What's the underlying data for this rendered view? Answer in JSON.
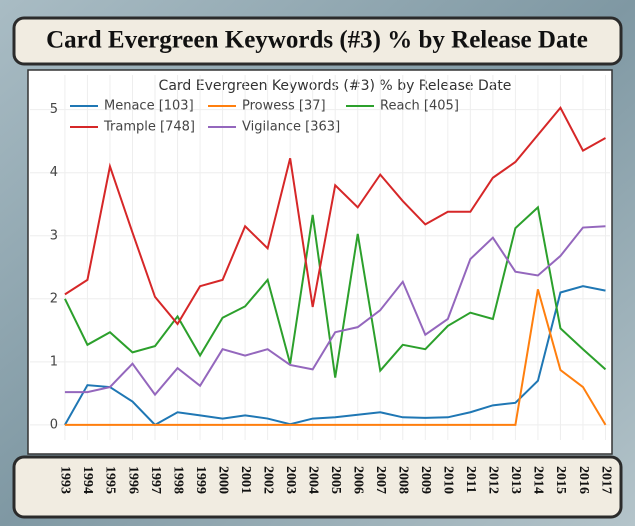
{
  "header_title": "Card Evergreen Keywords (#3) % by Release Date",
  "chart_data": {
    "type": "line",
    "title": "Card Evergreen Keywords (#3) % by Release Date",
    "x": [
      1993,
      1994,
      1995,
      1996,
      1997,
      1998,
      1999,
      2000,
      2001,
      2002,
      2003,
      2004,
      2005,
      2006,
      2007,
      2008,
      2009,
      2010,
      2011,
      2012,
      2013,
      2014,
      2015,
      2016,
      2017
    ],
    "xlim": [
      1991.45,
      2017.2
    ],
    "xticks": [
      1993,
      1994,
      1995,
      1996,
      1997,
      1998,
      1999,
      2000,
      2001,
      2002,
      2003,
      2004,
      2005,
      2006,
      2007,
      2008,
      2009,
      2010,
      2011,
      2012,
      2013,
      2014,
      2015,
      2016,
      2017
    ],
    "ylim": [
      -0.24,
      5.55
    ],
    "yticks": [
      0,
      1,
      2,
      3,
      4,
      5
    ],
    "grid": true,
    "legend": "top-left",
    "series": [
      {
        "name": "Menace [103]",
        "color": "#1f77b4",
        "values": [
          0,
          0.63,
          0.6,
          0.37,
          0,
          0.2,
          0.15,
          0.1,
          0.15,
          0.1,
          0.01,
          0.1,
          0.12,
          0.16,
          0.2,
          0.12,
          0.11,
          0.12,
          0.2,
          0.31,
          0.35,
          0.7,
          2.1,
          2.2,
          2.13
        ]
      },
      {
        "name": "Prowess [37]",
        "color": "#ff7f0e",
        "values": [
          0,
          0,
          0,
          0,
          0,
          0,
          0,
          0,
          0,
          0,
          0,
          0,
          0,
          0,
          0,
          0,
          0,
          0,
          0,
          0,
          0,
          2.15,
          0.87,
          0.6,
          0
        ]
      },
      {
        "name": "Reach [405]",
        "color": "#2ca02c",
        "values": [
          2.0,
          1.27,
          1.47,
          1.15,
          1.25,
          1.72,
          1.1,
          1.7,
          1.88,
          2.3,
          0.97,
          3.33,
          0.75,
          3.03,
          0.86,
          1.27,
          1.2,
          1.57,
          1.78,
          1.68,
          3.12,
          3.45,
          1.53,
          1.2,
          0.88
        ]
      },
      {
        "name": "Trample [748]",
        "color": "#d62728",
        "values": [
          2.07,
          2.3,
          4.1,
          3.05,
          2.03,
          1.6,
          2.2,
          2.3,
          3.15,
          2.8,
          4.23,
          1.87,
          3.8,
          3.45,
          3.97,
          3.55,
          3.18,
          3.38,
          3.38,
          3.92,
          4.17,
          4.6,
          5.03,
          4.35,
          4.55
        ]
      },
      {
        "name": "Vigilance [363]",
        "color": "#9467bd",
        "values": [
          0.52,
          0.52,
          0.6,
          0.97,
          0.48,
          0.9,
          0.62,
          1.2,
          1.1,
          1.2,
          0.95,
          0.88,
          1.47,
          1.55,
          1.82,
          2.27,
          1.43,
          1.68,
          2.63,
          2.97,
          2.43,
          2.37,
          2.68,
          3.13,
          3.15
        ]
      }
    ]
  }
}
